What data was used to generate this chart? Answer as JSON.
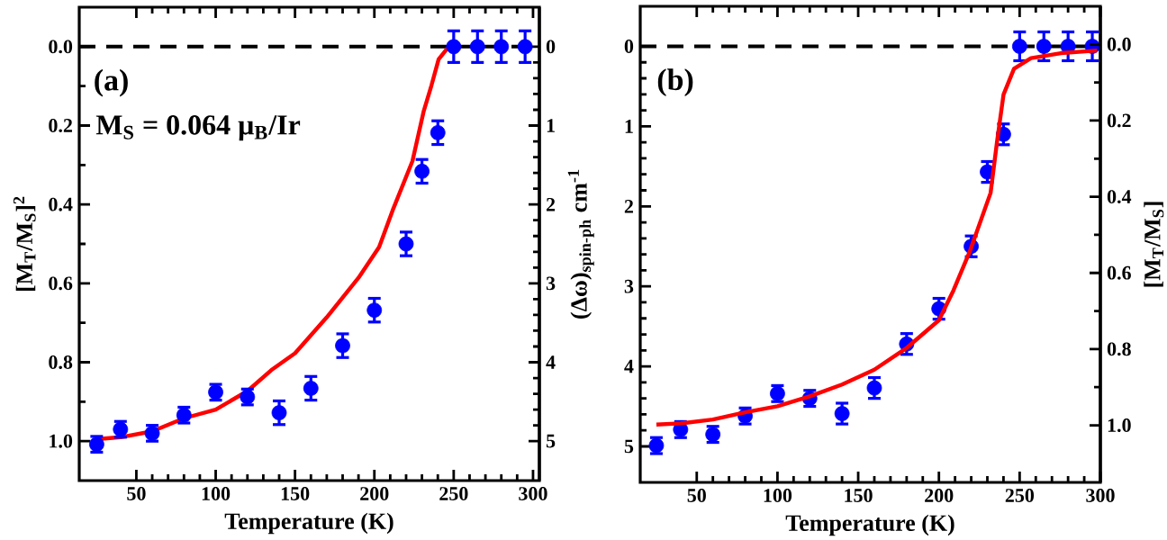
{
  "chart_data": [
    {
      "type": "scatter",
      "xlabel": "Temperature (K)",
      "ylabel": "[M$_{T}$/M$_{S}$]$^{2}$",
      "y2label": "(Δω)$_{spin-ph}$ cm$^{-1}$",
      "annotations": [
        "(a)",
        "M$_{S}$ = 0.064 μ$_{B}$/Ir"
      ],
      "x": [
        25,
        40,
        60,
        80,
        100,
        120,
        140,
        160,
        180,
        200,
        220,
        230,
        240,
        250,
        265,
        280,
        295
      ],
      "series": [
        {
          "type": "line",
          "color": "#ff0000",
          "line_style": "solid",
          "marker": "none",
          "axis": "y",
          "x": [
            25,
            40,
            60,
            80,
            100,
            120,
            135,
            150,
            170,
            190,
            203,
            212,
            224,
            231,
            236,
            240.5,
            245.5,
            250
          ],
          "values": [
            0.995,
            0.99,
            0.975,
            0.942,
            0.92,
            0.873,
            0.82,
            0.777,
            0.686,
            0.586,
            0.508,
            0.41,
            0.29,
            0.165,
            0.098,
            0.032,
            0.007,
            0
          ]
        },
        {
          "color": "#0000ff",
          "marker": "circle",
          "axis": "y2",
          "values": [
            5.04,
            4.85,
            4.9,
            4.67,
            4.38,
            4.44,
            4.64,
            4.33,
            3.79,
            3.34,
            2.5,
            1.58,
            1.09,
            0,
            0,
            0,
            0
          ],
          "errors": [
            0.1,
            0.1,
            0.1,
            0.1,
            0.1,
            0.1,
            0.15,
            0.15,
            0.15,
            0.15,
            0.15,
            0.15,
            0.15,
            0.2,
            0.2,
            0.2,
            0.2
          ]
        }
      ],
      "xlim": [
        14,
        304
      ],
      "xticks": [
        50,
        100,
        150,
        200,
        250,
        300
      ],
      "ylim": [
        1.1,
        -0.1
      ],
      "yticks": [
        {
          "value": 0,
          "label": "0.0"
        },
        {
          "value": 0.2,
          "label": "0.2"
        },
        {
          "value": 0.4,
          "label": "0.4"
        },
        {
          "value": 0.6,
          "label": "0.6"
        },
        {
          "value": 0.8,
          "label": "0.8"
        },
        {
          "value": 1,
          "label": "1.0"
        }
      ],
      "y2lim": [
        5.5,
        -0.5
      ],
      "y2ticks": [
        0,
        1,
        2,
        3,
        4,
        5
      ],
      "ref_lines": [
        {
          "axis": "y",
          "value": 0,
          "color": "#000000",
          "line_style": "dashed"
        }
      ]
    },
    {
      "type": "scatter",
      "xlabel": "Temperature (K)",
      "y2label": "[M$_{T}$/M$_{S}$]",
      "annotations": [
        "(b)"
      ],
      "x": [
        25,
        40,
        60,
        80,
        100,
        120,
        140,
        160,
        180,
        200,
        220,
        230,
        240,
        250,
        265,
        280,
        295
      ],
      "series": [
        {
          "color": "#0000ff",
          "marker": "circle",
          "axis": "y",
          "values": [
            4.99,
            4.79,
            4.85,
            4.62,
            4.34,
            4.4,
            4.59,
            4.27,
            3.72,
            3.28,
            2.5,
            1.57,
            1.1,
            0,
            0,
            0,
            0
          ],
          "errors": [
            0.1,
            0.1,
            0.1,
            0.1,
            0.1,
            0.1,
            0.13,
            0.13,
            0.13,
            0.13,
            0.13,
            0.13,
            0.13,
            0.18,
            0.18,
            0.18,
            0.18
          ]
        },
        {
          "type": "line",
          "color": "#ff0000",
          "line_style": "solid",
          "marker": "none",
          "axis": "y2",
          "x": [
            25,
            40,
            60,
            80,
            100,
            120,
            140,
            160,
            180,
            200,
            209,
            219,
            232,
            236,
            240,
            246.5,
            257,
            275.5,
            298
          ],
          "values": [
            0.998,
            0.995,
            0.985,
            0.966,
            0.95,
            0.924,
            0.893,
            0.854,
            0.797,
            0.724,
            0.646,
            0.545,
            0.39,
            0.255,
            0.132,
            0.064,
            0.036,
            0.023,
            0.016
          ]
        }
      ],
      "xlim": [
        15,
        300
      ],
      "xticks": [
        50,
        100,
        150,
        200,
        250,
        300
      ],
      "ylim": [
        5.45,
        -0.5
      ],
      "yticks": [
        0,
        1,
        2,
        3,
        4,
        5
      ],
      "y2lim": [
        1.15,
        -0.1
      ],
      "y2ticks": [
        {
          "value": 0,
          "label": "0.0"
        },
        {
          "value": 0.2,
          "label": "0.2"
        },
        {
          "value": 0.4,
          "label": "0.4"
        },
        {
          "value": 0.6,
          "label": "0.6"
        },
        {
          "value": 0.8,
          "label": "0.8"
        },
        {
          "value": 1,
          "label": "1.0"
        }
      ],
      "ref_lines": [
        {
          "axis": "y",
          "value": 0,
          "color": "#000000",
          "line_style": "dashed"
        }
      ]
    }
  ]
}
